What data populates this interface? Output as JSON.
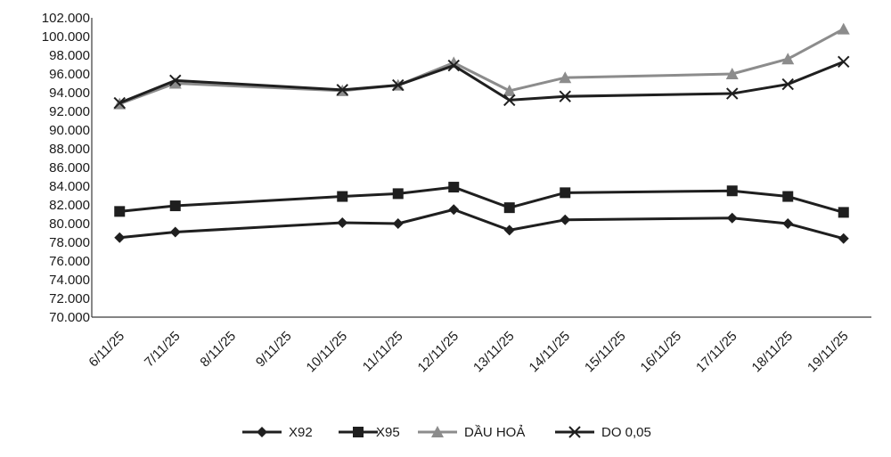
{
  "chart_data": {
    "type": "line",
    "categories": [
      "6/11/25",
      "7/11/25",
      "8/11/25",
      "9/11/25",
      "10/11/25",
      "11/11/25",
      "12/11/25",
      "13/11/25",
      "14/11/25",
      "15/11/25",
      "16/11/25",
      "17/11/25",
      "18/11/25",
      "19/11/25"
    ],
    "y_ticks": [
      "70.000",
      "72.000",
      "74.000",
      "76.000",
      "78.000",
      "80.000",
      "82.000",
      "84.000",
      "86.000",
      "88.000",
      "90.000",
      "92.000",
      "94.000",
      "96.000",
      "98.000",
      "100.000",
      "102.000"
    ],
    "ylim": [
      70000,
      102000
    ],
    "grid": false,
    "legend_position": "bottom",
    "series": [
      {
        "name": "X92",
        "marker": "diamond",
        "color": "#1f1f1f",
        "values": [
          78500,
          79100,
          null,
          null,
          80100,
          80000,
          81500,
          79300,
          80400,
          null,
          null,
          80600,
          80000,
          78400
        ]
      },
      {
        "name": "X95",
        "marker": "square",
        "color": "#1f1f1f",
        "values": [
          81300,
          81900,
          null,
          null,
          82900,
          83200,
          83900,
          81700,
          83300,
          null,
          null,
          83500,
          82900,
          81200
        ]
      },
      {
        "name": "DẦU HOẢ",
        "marker": "triangle",
        "color": "#8c8c8c",
        "values": [
          92800,
          95000,
          null,
          null,
          94200,
          94800,
          97200,
          94200,
          95600,
          null,
          null,
          96000,
          97600,
          100800
        ]
      },
      {
        "name": "DO 0,05",
        "marker": "x",
        "color": "#1f1f1f",
        "values": [
          92900,
          95300,
          null,
          null,
          94300,
          94800,
          96900,
          93200,
          93600,
          null,
          null,
          93900,
          94900,
          97300
        ]
      }
    ]
  }
}
